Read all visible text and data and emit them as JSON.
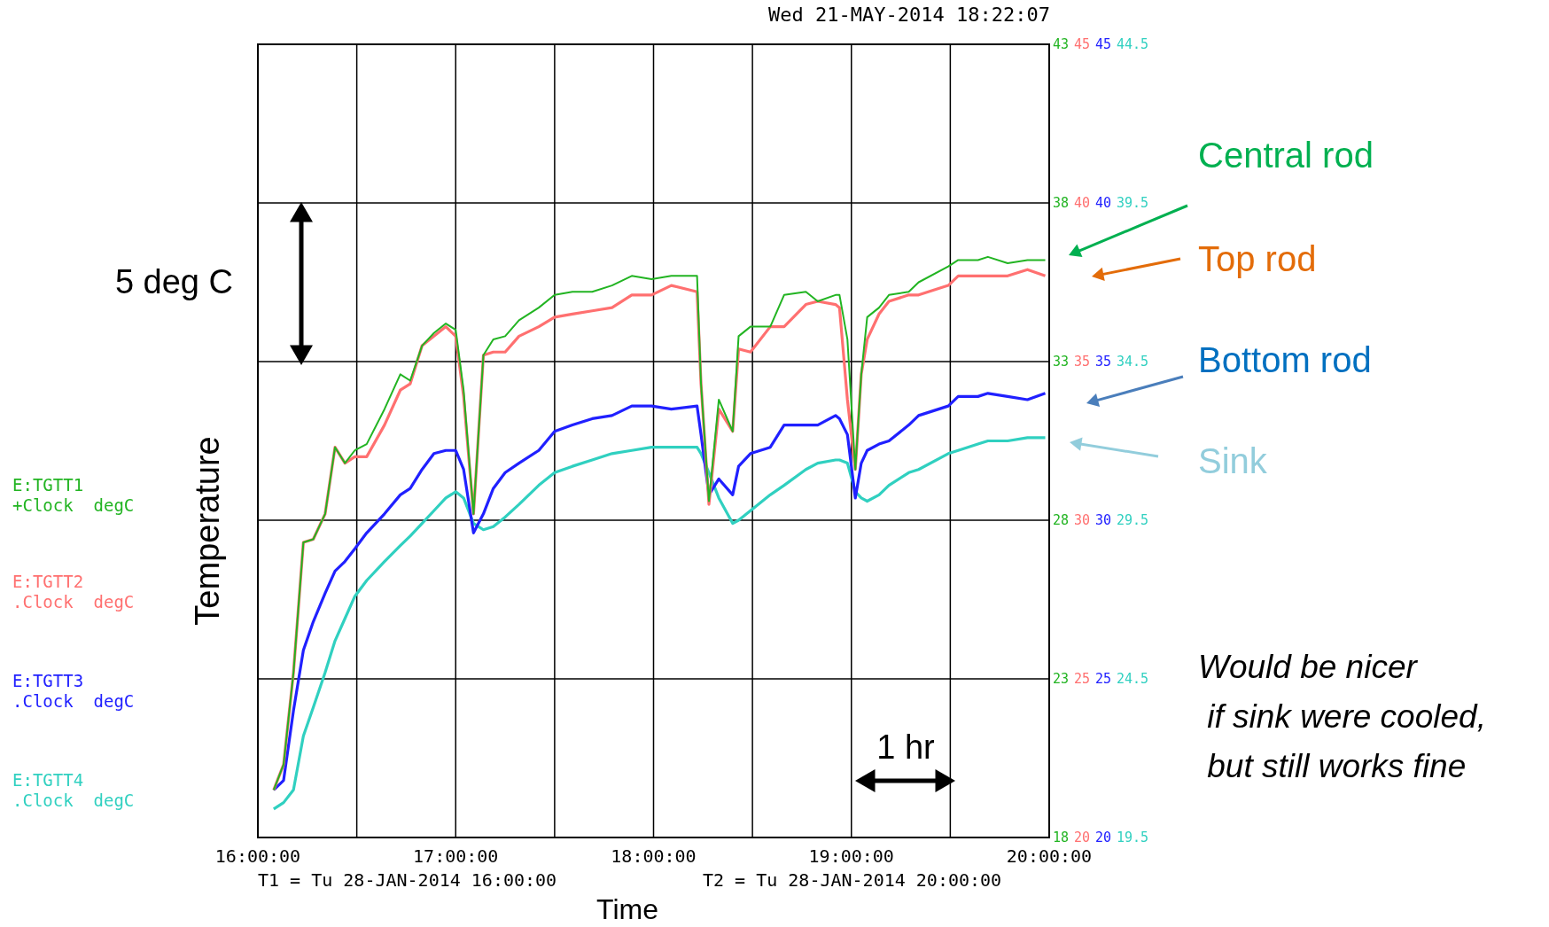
{
  "chart_data": {
    "type": "line",
    "xlabel": "Time",
    "ylabel": "Temperature",
    "annotations": [
      "Wed 21-MAY-2014 18:22:07",
      "T1 = Tu 28-JAN-2014 16:00:00",
      "T2 = Tu 28-JAN-2014 20:00:00",
      "5 deg C",
      "1 hr",
      "Central rod",
      "Top rod",
      "Bottom rod",
      "Sink",
      "Would be nicer\n if sink were cooled,\n but still works fine",
      "45",
      "40",
      "35",
      "30",
      "25",
      "20"
    ],
    "x": [
      16.08,
      16.13,
      16.18,
      16.23,
      16.28,
      16.34,
      16.39,
      16.44,
      16.49,
      16.55,
      16.64,
      16.72,
      16.77,
      16.83,
      16.89,
      16.95,
      17.0,
      17.04,
      17.09,
      17.14,
      17.19,
      17.25,
      17.32,
      17.42,
      17.5,
      17.59,
      17.69,
      17.79,
      17.89,
      17.99,
      18.09,
      18.22,
      18.24,
      18.28,
      18.33,
      18.4,
      18.43,
      18.49,
      18.59,
      18.66,
      18.77,
      18.83,
      18.92,
      18.94,
      18.98,
      19.02,
      19.05,
      19.08,
      19.14,
      19.19,
      19.29,
      19.34,
      19.49,
      19.54,
      19.64,
      19.69,
      19.79,
      19.89,
      19.98
    ],
    "series": [
      {
        "name": "E:TGTT1 +Clock  degC",
        "color": "#22b422",
        "values": [
          19.5,
          20.3,
          23.2,
          27.3,
          27.4,
          28.2,
          30.3,
          29.8,
          30.2,
          30.4,
          31.5,
          32.6,
          32.4,
          33.5,
          33.9,
          34.2,
          34.0,
          32.1,
          28.2,
          33.2,
          33.7,
          33.8,
          34.3,
          34.7,
          35.1,
          35.2,
          35.2,
          35.4,
          35.7,
          35.6,
          35.7,
          35.7,
          32.3,
          28.6,
          31.8,
          30.8,
          33.8,
          34.1,
          34.1,
          35.1,
          35.2,
          34.9,
          35.1,
          35.1,
          33.7,
          29.6,
          32.6,
          34.4,
          34.7,
          35.1,
          35.2,
          35.5,
          36.0,
          36.2,
          36.2,
          36.3,
          36.1,
          36.2,
          36.2
        ]
      },
      {
        "name": "E:TGTT2 .Clock  degC",
        "color": "#ff7070",
        "axis": "y2",
        "values": [
          21.5,
          22.3,
          25.2,
          29.3,
          29.4,
          30.2,
          32.3,
          31.8,
          32.0,
          32.0,
          33.0,
          34.1,
          34.3,
          35.5,
          35.8,
          36.1,
          35.8,
          33.9,
          30.2,
          35.2,
          35.3,
          35.3,
          35.8,
          36.1,
          36.4,
          36.5,
          36.6,
          36.7,
          37.1,
          37.1,
          37.4,
          37.2,
          34.3,
          30.5,
          33.5,
          32.8,
          35.4,
          35.3,
          36.1,
          36.1,
          36.8,
          36.9,
          36.8,
          36.7,
          33.8,
          31.6,
          34.6,
          35.7,
          36.5,
          36.9,
          37.1,
          37.1,
          37.4,
          37.7,
          37.7,
          37.7,
          37.7,
          37.9,
          37.7
        ]
      },
      {
        "name": "E:TGTT3 .Clock  degC",
        "color": "#2020ff",
        "axis": "y2",
        "values": [
          21.5,
          21.8,
          24.0,
          25.9,
          26.8,
          27.7,
          28.4,
          28.7,
          29.1,
          29.6,
          30.2,
          30.8,
          31.0,
          31.6,
          32.1,
          32.2,
          32.2,
          31.6,
          29.6,
          30.2,
          31.0,
          31.5,
          31.8,
          32.2,
          32.8,
          33.0,
          33.2,
          33.3,
          33.6,
          33.6,
          33.5,
          33.6,
          32.7,
          30.8,
          31.3,
          30.8,
          31.7,
          32.1,
          32.3,
          33.0,
          33.0,
          33.0,
          33.3,
          33.2,
          32.7,
          30.7,
          31.8,
          32.2,
          32.4,
          32.5,
          33.0,
          33.3,
          33.6,
          33.9,
          33.9,
          34.0,
          33.9,
          33.8,
          34.0
        ]
      },
      {
        "name": "E:TGTT4 .Clock  degC",
        "color": "#30d0c0",
        "axis": "y3",
        "values": [
          20.4,
          20.6,
          21.0,
          22.7,
          23.6,
          24.7,
          25.7,
          26.4,
          27.1,
          27.6,
          28.2,
          28.7,
          29.0,
          29.4,
          29.8,
          30.2,
          30.4,
          30.2,
          29.4,
          29.2,
          29.3,
          29.6,
          30.0,
          30.6,
          31.0,
          31.2,
          31.4,
          31.6,
          31.7,
          31.8,
          31.8,
          31.8,
          31.6,
          31.0,
          30.2,
          29.4,
          29.5,
          29.8,
          30.3,
          30.6,
          31.1,
          31.3,
          31.4,
          31.4,
          31.3,
          30.4,
          30.2,
          30.1,
          30.3,
          30.6,
          31.0,
          31.1,
          31.6,
          31.7,
          31.9,
          32.0,
          32.0,
          32.1,
          32.1
        ]
      }
    ],
    "xlim": [
      16,
      20
    ],
    "xticks": [
      {
        "value": 16,
        "label": "16:00:00"
      },
      {
        "value": 16.5,
        "label": null
      },
      {
        "value": 17,
        "label": "17:00:00"
      },
      {
        "value": 17.5,
        "label": null
      },
      {
        "value": 18,
        "label": "18:00:00"
      },
      {
        "value": 18.5,
        "label": null
      },
      {
        "value": 19,
        "label": "19:00:00"
      },
      {
        "value": 19.5,
        "label": null
      },
      {
        "value": 20,
        "label": "20:00:00"
      }
    ],
    "ylim": [
      18,
      43
    ],
    "yticks": [
      18,
      23,
      28,
      33,
      38,
      43
    ],
    "y2lim": [
      20,
      45
    ],
    "y2ticks": [
      20,
      25,
      30,
      35,
      40,
      45
    ],
    "y3lim": [
      19.5,
      44.5
    ],
    "y3ticks": [
      19.5,
      24.5,
      29.5,
      34.5,
      39.5,
      44.5
    ],
    "grid": true,
    "legend": "left"
  }
}
